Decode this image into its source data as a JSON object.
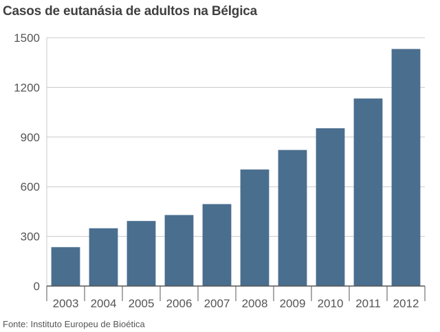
{
  "chart_data": {
    "type": "bar",
    "title": "Casos de eutanásia de adultos na Bélgica",
    "source": "Fonte: Instituto Europeu de Bioética",
    "categories": [
      "2003",
      "2004",
      "2005",
      "2006",
      "2007",
      "2008",
      "2009",
      "2010",
      "2011",
      "2012"
    ],
    "values": [
      235,
      349,
      393,
      429,
      495,
      704,
      822,
      953,
      1133,
      1432
    ],
    "ylim": [
      0,
      1500
    ],
    "yticks": [
      0,
      300,
      600,
      900,
      1200,
      1500
    ],
    "grid": true,
    "colors": {
      "bar": "#4a6e8e",
      "grid": "#c8c8c8",
      "axis": "#555555"
    }
  }
}
